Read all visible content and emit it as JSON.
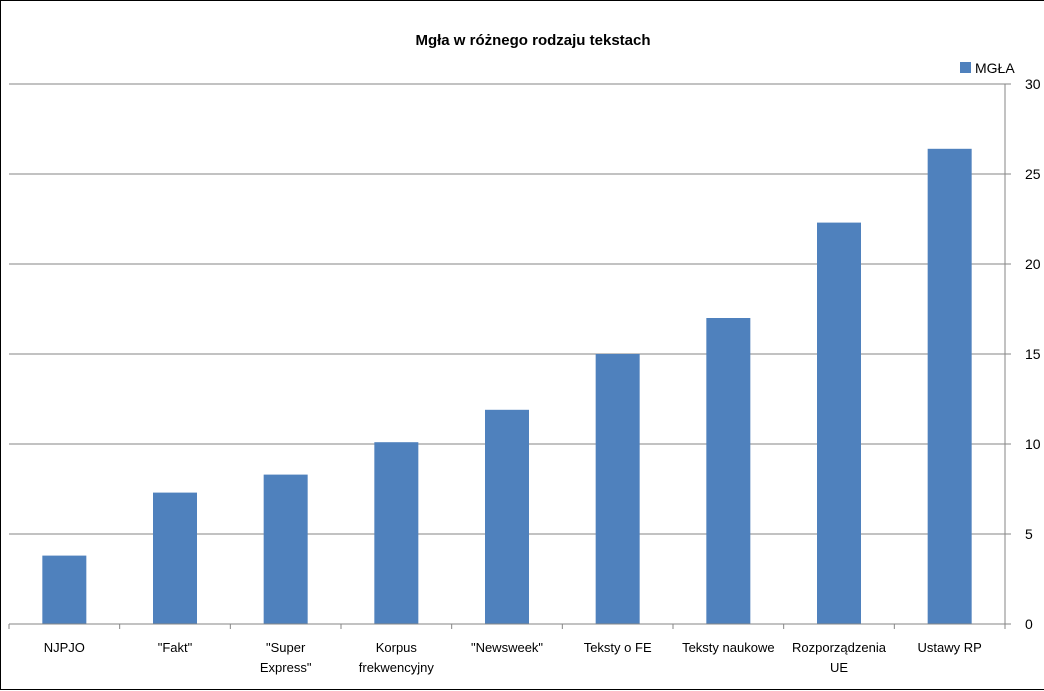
{
  "chart_data": {
    "type": "bar",
    "title": "Mgła w różnego rodzaju tekstach",
    "xlabel": "",
    "ylabel": "",
    "categories": [
      "NJPJO",
      "\"Fakt\"",
      "\"Super Express\"",
      "Korpus frekwencyjny",
      "\"Newsweek\"",
      "Teksty o FE",
      "Teksty naukowe",
      "Rozporządzenia UE",
      "Ustawy RP"
    ],
    "category_lines": [
      [
        "NJPJO"
      ],
      [
        "\"Fakt\""
      ],
      [
        "\"Super",
        "Express\""
      ],
      [
        "Korpus",
        "frekwencyjny"
      ],
      [
        "\"Newsweek\""
      ],
      [
        "Teksty o FE"
      ],
      [
        "Teksty naukowe"
      ],
      [
        "Rozporządzenia",
        "UE"
      ],
      [
        "Ustawy RP"
      ]
    ],
    "series": [
      {
        "name": "MGŁA",
        "values": [
          3.8,
          7.3,
          8.3,
          10.1,
          11.9,
          15.0,
          17.0,
          22.3,
          26.4
        ],
        "color": "#4f81bd"
      }
    ],
    "ylim": [
      0,
      30
    ],
    "yticks": [
      "0",
      "5",
      "10",
      "15",
      "20",
      "25",
      "30"
    ],
    "y_axis_position": "right",
    "grid": true,
    "legend_position": "top-right"
  }
}
